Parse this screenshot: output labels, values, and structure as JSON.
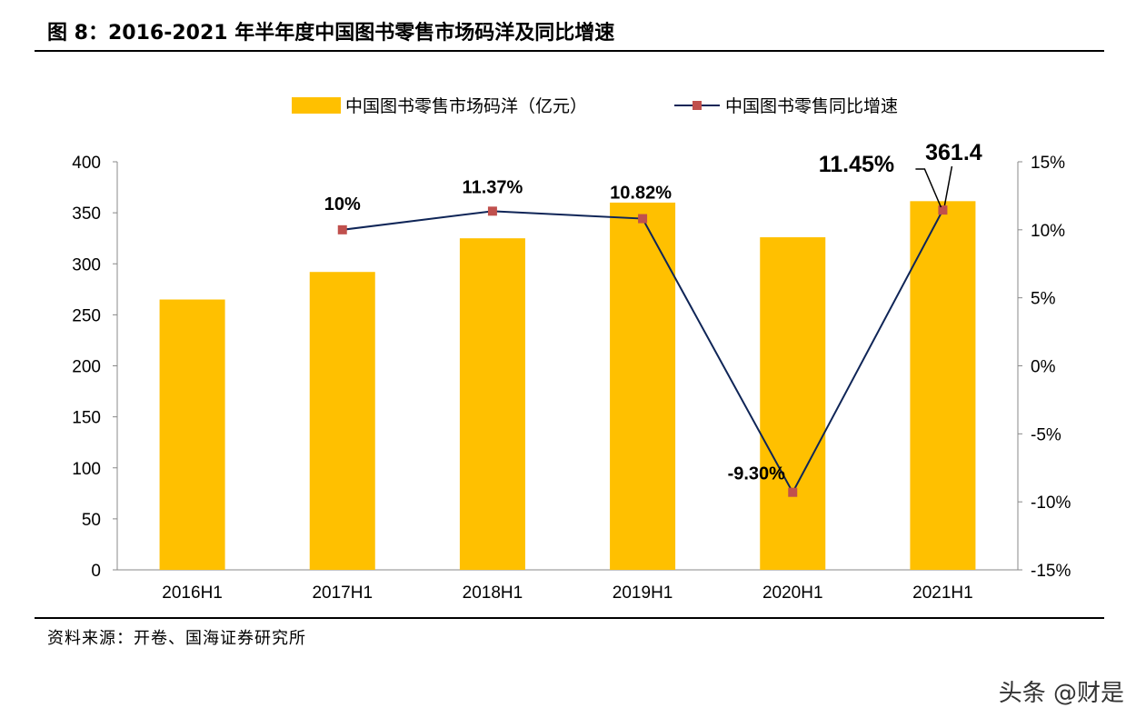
{
  "title": "图 8：2016-2021 年半年度中国图书零售市场码洋及同比增速",
  "source": "资料来源：开卷、国海证券研究所",
  "watermark": "头条 @财是",
  "chart_data": {
    "type": "bar+line",
    "categories": [
      "2016H1",
      "2017H1",
      "2018H1",
      "2019H1",
      "2020H1",
      "2021H1"
    ],
    "series": [
      {
        "name": "中国图书零售市场码洋（亿元）",
        "type": "bar",
        "axis": "left",
        "color": "#FFC000",
        "values": [
          265,
          292,
          325,
          360,
          326,
          361.4
        ],
        "data_labels": [
          "",
          "",
          "",
          "",
          "",
          "361.4"
        ]
      },
      {
        "name": "中国图书零售同比增速",
        "type": "line",
        "axis": "right",
        "color": "#0F2557",
        "marker_color": "#C0504D",
        "values": [
          null,
          10,
          11.37,
          10.82,
          -9.3,
          11.45
        ],
        "data_labels": [
          "",
          "10%",
          "11.37%",
          "10.82%",
          "-9.30%",
          "11.45%"
        ]
      }
    ],
    "left_axis": {
      "ylim": [
        0,
        400
      ],
      "ticks": [
        "0",
        "50",
        "100",
        "150",
        "200",
        "250",
        "300",
        "350",
        "400"
      ]
    },
    "right_axis": {
      "ylim": [
        -15,
        15
      ],
      "ticks": [
        "-15%",
        "-10%",
        "-5%",
        "0%",
        "5%",
        "10%",
        "15%"
      ]
    },
    "legend_position": "top",
    "grid": false
  }
}
